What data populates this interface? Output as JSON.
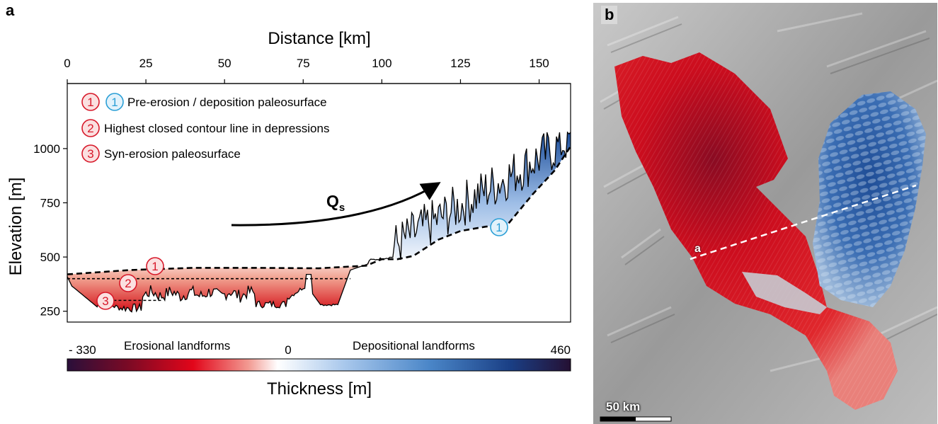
{
  "panels": {
    "a_letter": "a",
    "b_letter": "b"
  },
  "chart_data": {
    "type": "area",
    "xlabel": "Distance [km]",
    "ylabel": "Elevation [m]",
    "xlim": [
      0,
      160
    ],
    "ylim": [
      200,
      1300
    ],
    "x_ticks": [
      0,
      25,
      50,
      75,
      100,
      125,
      150
    ],
    "y_ticks": [
      250,
      500,
      750,
      1000
    ],
    "x_axis_position": "top",
    "grid": false,
    "legend": [
      {
        "markers": [
          "1",
          "1"
        ],
        "text": "Pre-erosion / deposition paleosurface"
      },
      {
        "markers": [
          "2"
        ],
        "text": "Highest closed contour line in depressions"
      },
      {
        "markers": [
          "3"
        ],
        "text": "Syn-erosion paleosurface"
      }
    ],
    "annotations": {
      "qs_label": "Q",
      "qs_subscript": "s",
      "callout_1_red": "1",
      "callout_2_red": "2",
      "callout_3_red": "3",
      "callout_1_blue": "1"
    },
    "series": [
      {
        "name": "Pre-erosion / deposition paleosurface",
        "x": [
          0,
          20,
          40,
          60,
          80,
          95,
          100,
          105,
          110,
          118,
          125,
          133,
          140,
          148,
          155,
          160
        ],
        "y": [
          420,
          440,
          450,
          450,
          448,
          460,
          490,
          490,
          505,
          580,
          620,
          640,
          650,
          790,
          900,
          1010
        ]
      },
      {
        "name": "Highest closed contour line in depressions",
        "x": [
          0,
          90
        ],
        "y": [
          400,
          400
        ]
      },
      {
        "name": "Syn-erosion paleosurface",
        "x": [
          10,
          30
        ],
        "y": [
          300,
          300
        ]
      }
    ],
    "colorbar": {
      "title": "Thickness [m]",
      "min_label": "- 330",
      "mid_label": "0",
      "max_label": "460",
      "left_text": "Erosional landforms",
      "right_text": "Depositional landforms",
      "min": -330,
      "max": 460
    }
  },
  "map": {
    "scalebar_label": "50 km",
    "profile_label": "a"
  }
}
